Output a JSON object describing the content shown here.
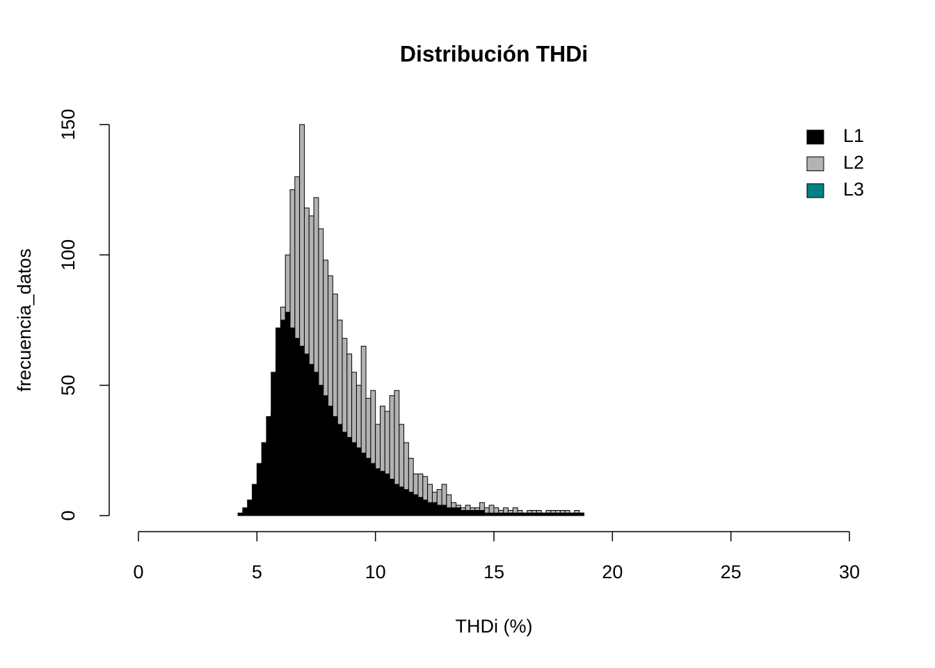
{
  "chart_data": {
    "type": "histogram",
    "title": "Distribución THDi",
    "x_label": "THDi (%)",
    "y_label": "frecuencia_datos",
    "bins": [
      4.2,
      4.4,
      4.6,
      4.8,
      5.0,
      5.2,
      5.4,
      5.6,
      5.8,
      6.0,
      6.2,
      6.4,
      6.6,
      6.8,
      7.0,
      7.2,
      7.4,
      7.6,
      7.8,
      8.0,
      8.2,
      8.4,
      8.6,
      8.8,
      9.0,
      9.2,
      9.4,
      9.6,
      9.8,
      10.0,
      10.2,
      10.4,
      10.6,
      10.8,
      11.0,
      11.2,
      11.4,
      11.6,
      11.8,
      12.0,
      12.2,
      12.4,
      12.6,
      12.8,
      13.0,
      13.2,
      13.4,
      13.6,
      13.8,
      14.0,
      14.2,
      14.4,
      14.6,
      14.8,
      15.0,
      15.2,
      15.4,
      15.6,
      15.8,
      16.0,
      16.2,
      16.4,
      16.6,
      16.8,
      17.0,
      17.2,
      17.4,
      17.6,
      17.8,
      18.0,
      18.2,
      18.4,
      18.6,
      18.8
    ],
    "series": [
      {
        "name": "L1",
        "color": "#000000",
        "values": [
          1,
          3,
          6,
          12,
          20,
          28,
          38,
          55,
          72,
          75,
          78,
          72,
          68,
          65,
          62,
          58,
          55,
          50,
          46,
          42,
          38,
          35,
          32,
          30,
          28,
          26,
          24,
          22,
          20,
          18,
          17,
          16,
          14,
          12,
          11,
          10,
          9,
          8,
          7,
          6,
          5,
          5,
          4,
          4,
          3,
          3,
          3,
          2,
          2,
          2,
          2,
          2,
          1,
          1,
          1,
          1,
          1,
          1,
          1,
          1,
          1,
          1,
          1,
          1,
          1,
          1,
          1,
          1,
          1,
          1,
          1,
          1,
          1
        ]
      },
      {
        "name": "L2",
        "color": "#b3b3b3",
        "values": [
          0,
          1,
          2,
          4,
          8,
          14,
          22,
          40,
          60,
          80,
          100,
          125,
          130,
          150,
          118,
          115,
          122,
          110,
          98,
          92,
          85,
          75,
          68,
          62,
          55,
          50,
          65,
          45,
          48,
          35,
          42,
          40,
          46,
          48,
          35,
          28,
          22,
          16,
          16,
          15,
          12,
          9,
          10,
          12,
          8,
          5,
          4,
          3,
          4,
          3,
          3,
          5,
          3,
          4,
          3,
          2,
          3,
          2,
          3,
          2,
          1,
          2,
          2,
          2,
          1,
          2,
          2,
          2,
          2,
          2,
          1,
          2,
          1
        ]
      },
      {
        "name": "L3",
        "color": "#008080",
        "values": [
          null,
          null,
          null,
          null,
          null,
          null,
          null,
          null,
          null,
          null,
          null,
          null,
          null,
          null,
          null,
          null,
          null,
          null,
          null,
          null,
          null,
          null,
          null,
          null,
          null,
          null,
          null,
          null,
          null,
          null,
          null,
          null,
          null,
          null,
          null,
          null,
          null,
          null,
          null,
          null,
          null,
          null,
          null,
          null,
          null,
          null,
          null,
          null,
          null,
          null,
          null,
          null,
          null,
          null,
          null,
          null,
          null,
          null,
          null,
          null,
          null,
          null,
          null,
          null,
          null,
          null,
          null,
          null,
          null,
          null,
          null,
          null,
          null
        ]
      }
    ],
    "xlim": [
      0,
      30
    ],
    "xticks": [
      0,
      5,
      10,
      15,
      20,
      25,
      30
    ],
    "ylim": [
      0,
      150
    ],
    "yticks": [
      0,
      50,
      100,
      150
    ],
    "legend": "topright"
  }
}
